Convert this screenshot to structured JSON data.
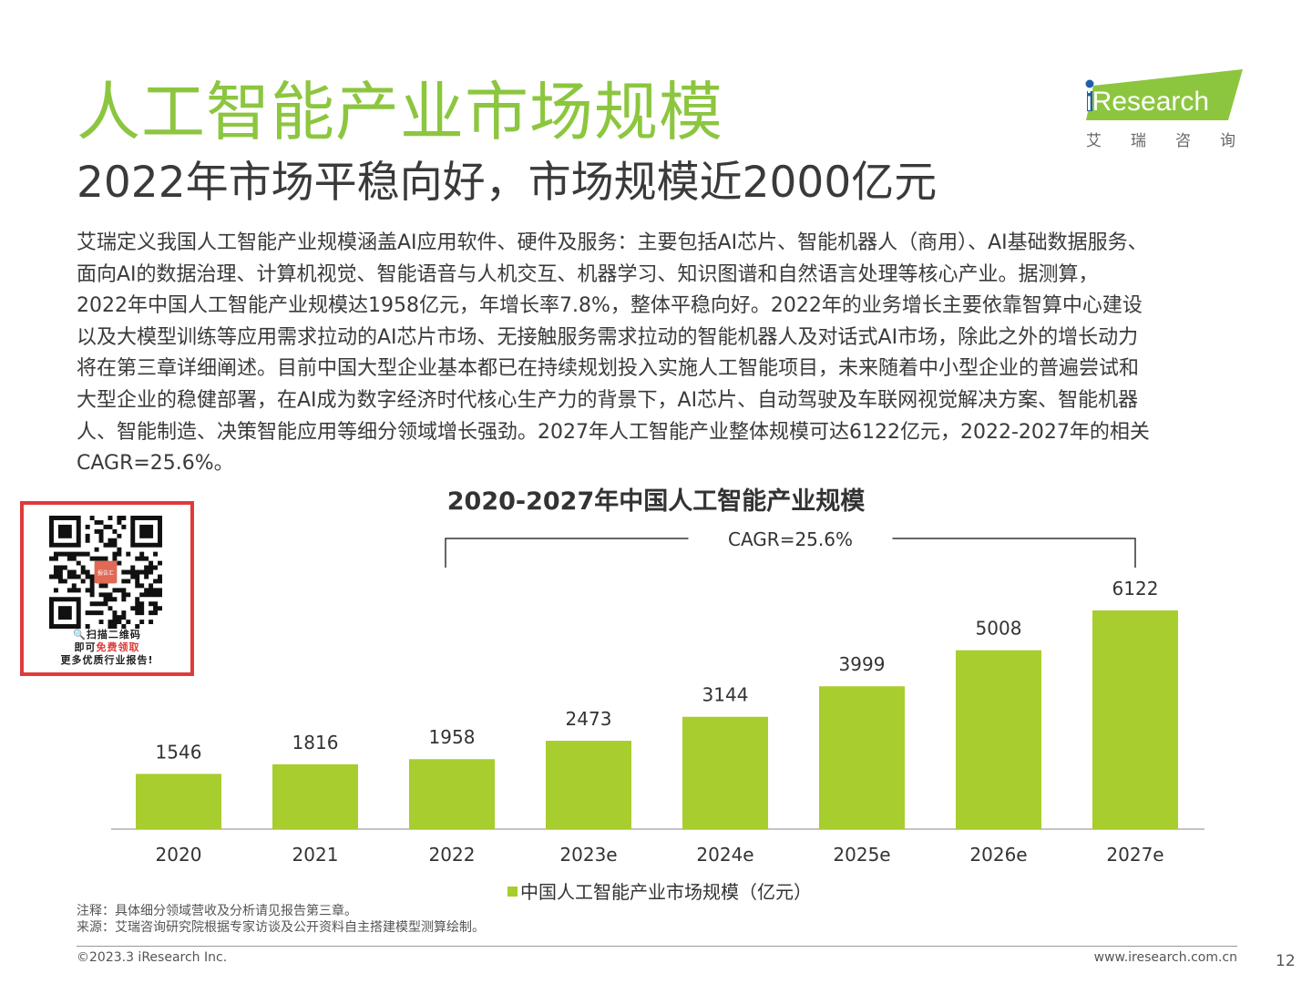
{
  "header": {
    "title": "人工智能产业市场规模",
    "subtitle": "2022年市场平稳向好，市场规模近2000亿元"
  },
  "logo": {
    "brand": "iResearch",
    "brand_cn": "艾瑞咨询",
    "accent_color": "#8cc63f"
  },
  "body_lines": [
    "艾瑞定义我国人工智能产业规模涵盖AI应用软件、硬件及服务：主要包括AI芯片、智能机器人（商用）、AI基础数据服务、",
    "面向AI的数据治理、计算机视觉、智能语音与人机交互、机器学习、知识图谱和自然语言处理等核心产业。据测算，",
    "2022年中国人工智能产业规模达1958亿元，年增长率7.8%，整体平稳向好。2022年的业务增长主要依靠智算中心建设",
    "以及大模型训练等应用需求拉动的AI芯片市场、无接触服务需求拉动的智能机器人及对话式AI市场，除此之外的增长动力",
    "将在第三章详细阐述。目前中国大型企业基本都已在持续规划投入实施人工智能项目，未来随着中小型企业的普遍尝试和",
    "大型企业的稳健部署，在AI成为数字经济时代核心生产力的背景下，AI芯片、自动驾驶及车联网视觉解决方案、智能机器",
    "人、智能制造、决策智能应用等细分领域增长强劲。2027年人工智能产业整体规模可达6122亿元，2022-2027年的相关",
    "CAGR=25.6%。"
  ],
  "qr_promo": {
    "badge": "报告汇",
    "line1": "扫描二维码",
    "line2_prefix": "即可",
    "line2_highlight": "免费领取",
    "line3": "更多优质行业报告!"
  },
  "chart_data": {
    "type": "bar",
    "title": "2020-2027年中国人工智能产业规模",
    "categories": [
      "2020",
      "2021",
      "2022",
      "2023e",
      "2024e",
      "2025e",
      "2026e",
      "2027e"
    ],
    "series": [
      {
        "name": "中国人工智能产业市场规模（亿元）",
        "values": [
          1546,
          1816,
          1958,
          2473,
          3144,
          3999,
          5008,
          6122
        ],
        "color": "#a8cd2e"
      }
    ],
    "annotation": {
      "label": "CAGR=25.6%",
      "from": "2022",
      "to": "2027e"
    },
    "ylim": [
      0,
      6122
    ],
    "grid": false,
    "legend": "bottom-center"
  },
  "notes": {
    "note": "注释：具体细分领域营收及分析请见报告第三章。",
    "source": "来源：艾瑞咨询研究院根据专家访谈及公开资料自主搭建模型测算绘制。"
  },
  "footer": {
    "copyright": "©2023.3 iResearch Inc.",
    "website": "www.iresearch.com.cn",
    "page_number": "12"
  }
}
